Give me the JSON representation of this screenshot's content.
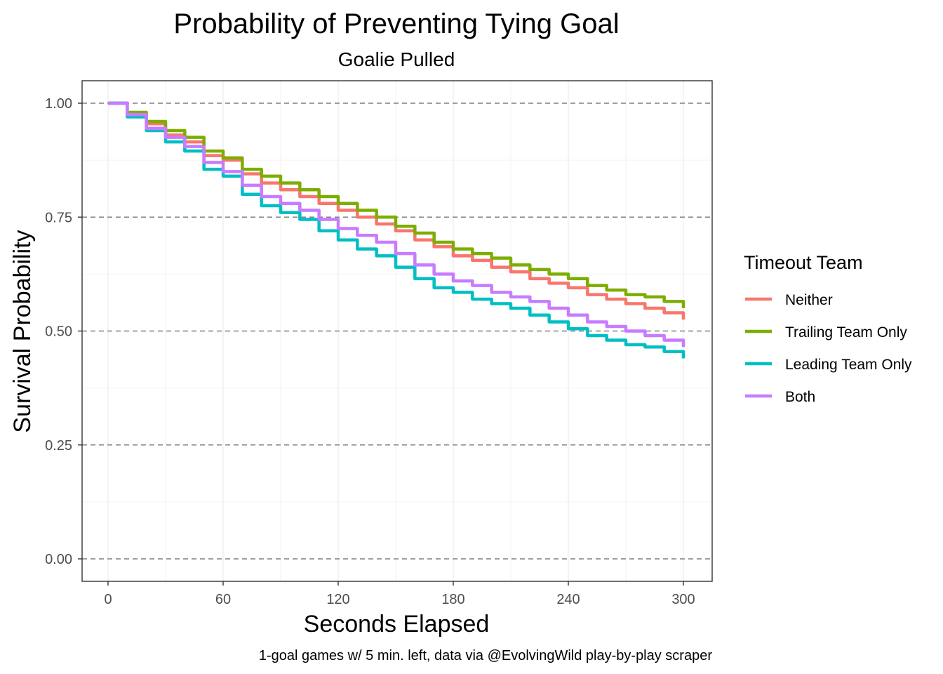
{
  "chart_data": {
    "type": "line",
    "title": "Probability of Preventing Tying Goal",
    "subtitle": "Goalie Pulled",
    "xlabel": "Seconds Elapsed",
    "ylabel": "Survival Probability",
    "caption": "1-goal games w/ 5 min. left, data via @EvolvingWild play-by-play scraper",
    "xlim": [
      0,
      300
    ],
    "ylim": [
      0,
      1
    ],
    "xticks": [
      0,
      60,
      120,
      180,
      240,
      300
    ],
    "xtick_labels": [
      "0",
      "60",
      "120",
      "180",
      "240",
      "300"
    ],
    "yticks": [
      0,
      0.25,
      0.5,
      0.75,
      1.0
    ],
    "ytick_labels": [
      "0.00",
      "0.25",
      "0.50",
      "0.75",
      "1.00"
    ],
    "grid": true,
    "legend": {
      "title": "Timeout Team",
      "position": "right"
    },
    "series": [
      {
        "name": "Neither",
        "color": "#F8766D",
        "x": [
          0,
          10,
          20,
          30,
          40,
          50,
          60,
          70,
          80,
          90,
          100,
          110,
          120,
          130,
          140,
          150,
          160,
          170,
          180,
          190,
          200,
          210,
          220,
          230,
          240,
          250,
          260,
          270,
          280,
          290,
          300
        ],
        "y": [
          1.0,
          0.975,
          0.955,
          0.93,
          0.915,
          0.885,
          0.875,
          0.845,
          0.825,
          0.81,
          0.795,
          0.78,
          0.765,
          0.75,
          0.735,
          0.72,
          0.7,
          0.685,
          0.665,
          0.655,
          0.64,
          0.63,
          0.615,
          0.605,
          0.595,
          0.58,
          0.57,
          0.56,
          0.55,
          0.54,
          0.525
        ]
      },
      {
        "name": "Trailing Team Only",
        "color": "#7CAE00",
        "x": [
          0,
          10,
          20,
          30,
          40,
          50,
          60,
          70,
          80,
          90,
          100,
          110,
          120,
          130,
          140,
          150,
          160,
          170,
          180,
          190,
          200,
          210,
          220,
          230,
          240,
          250,
          260,
          270,
          280,
          290,
          300
        ],
        "y": [
          1.0,
          0.98,
          0.96,
          0.94,
          0.925,
          0.895,
          0.88,
          0.855,
          0.84,
          0.825,
          0.81,
          0.795,
          0.78,
          0.765,
          0.75,
          0.73,
          0.715,
          0.695,
          0.68,
          0.67,
          0.66,
          0.645,
          0.635,
          0.625,
          0.615,
          0.6,
          0.59,
          0.58,
          0.575,
          0.565,
          0.55
        ]
      },
      {
        "name": "Leading Team Only",
        "color": "#00BFC4",
        "x": [
          0,
          10,
          20,
          30,
          40,
          50,
          60,
          70,
          80,
          90,
          100,
          110,
          120,
          130,
          140,
          150,
          160,
          170,
          180,
          190,
          200,
          210,
          220,
          230,
          240,
          250,
          260,
          270,
          280,
          290,
          300
        ],
        "y": [
          1.0,
          0.97,
          0.94,
          0.915,
          0.895,
          0.855,
          0.84,
          0.8,
          0.775,
          0.76,
          0.745,
          0.72,
          0.7,
          0.68,
          0.665,
          0.64,
          0.615,
          0.595,
          0.585,
          0.57,
          0.56,
          0.55,
          0.535,
          0.52,
          0.505,
          0.49,
          0.48,
          0.47,
          0.465,
          0.455,
          0.44
        ]
      },
      {
        "name": "Both",
        "color": "#C77CFF",
        "x": [
          0,
          10,
          20,
          30,
          40,
          50,
          60,
          70,
          80,
          90,
          100,
          110,
          120,
          130,
          140,
          150,
          160,
          170,
          180,
          190,
          200,
          210,
          220,
          230,
          240,
          250,
          260,
          270,
          280,
          290,
          300
        ],
        "y": [
          1.0,
          0.975,
          0.945,
          0.925,
          0.905,
          0.87,
          0.85,
          0.82,
          0.795,
          0.78,
          0.765,
          0.745,
          0.725,
          0.71,
          0.695,
          0.67,
          0.645,
          0.625,
          0.61,
          0.6,
          0.585,
          0.575,
          0.565,
          0.55,
          0.535,
          0.52,
          0.51,
          0.5,
          0.49,
          0.48,
          0.465
        ]
      }
    ]
  }
}
